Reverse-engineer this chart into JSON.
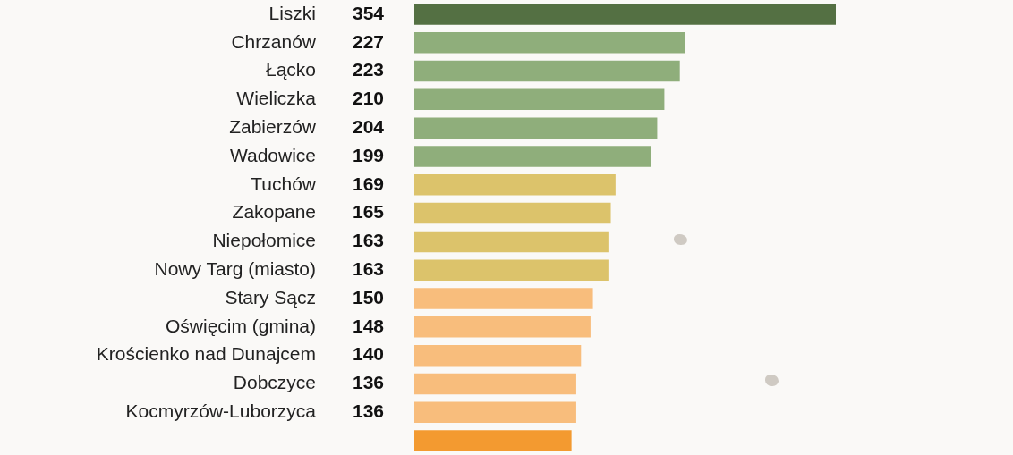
{
  "chart_data": {
    "type": "bar",
    "orientation": "horizontal",
    "categories": [
      "Liszki",
      "Chrzanów",
      "Łącko",
      "Wieliczka",
      "Zabierzów",
      "Wadowice",
      "Tuchów",
      "Zakopane",
      "Niepołomice",
      "Nowy Targ (miasto)",
      "Stary Sącz",
      "Oświęcim (gmina)",
      "Krościenko nad Dunajcem",
      "Dobczyce",
      "Kocmyrzów-Luborzyca",
      null
    ],
    "values": [
      354,
      227,
      223,
      210,
      204,
      199,
      169,
      165,
      163,
      163,
      150,
      148,
      140,
      136,
      136,
      132
    ],
    "value_labels": [
      "354",
      "227",
      "223",
      "210",
      "204",
      "199",
      "169",
      "165",
      "163",
      "163",
      "150",
      "148",
      "140",
      "136",
      "136",
      null
    ],
    "colors": [
      "#547043",
      "#8fae7b",
      "#8fae7b",
      "#8fae7b",
      "#8fae7b",
      "#8fae7b",
      "#dcc36b",
      "#dcc36b",
      "#dcc36b",
      "#dcc36b",
      "#f8bd7c",
      "#f8bd7c",
      "#f8bd7c",
      "#f8bd7c",
      "#f8bd7c",
      "#f39a30"
    ],
    "legend": false
  }
}
